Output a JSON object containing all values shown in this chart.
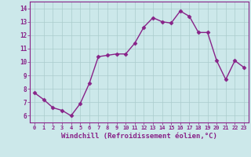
{
  "x": [
    0,
    1,
    2,
    3,
    4,
    5,
    6,
    7,
    8,
    9,
    10,
    11,
    12,
    13,
    14,
    15,
    16,
    17,
    18,
    19,
    20,
    21,
    22,
    23
  ],
  "y": [
    7.7,
    7.2,
    6.6,
    6.4,
    6.0,
    6.9,
    8.4,
    10.4,
    10.5,
    10.6,
    10.6,
    11.4,
    12.6,
    13.3,
    13.0,
    12.9,
    13.8,
    13.4,
    12.2,
    12.2,
    10.1,
    8.7,
    10.1,
    9.6
  ],
  "line_color": "#882288",
  "marker": "D",
  "marker_size": 2.5,
  "linewidth": 1.0,
  "xlabel": "Windchill (Refroidissement éolien,°C)",
  "xlabel_fontsize": 6.5,
  "xtick_labels": [
    "0",
    "1",
    "2",
    "3",
    "4",
    "5",
    "6",
    "7",
    "8",
    "9",
    "10",
    "11",
    "12",
    "13",
    "14",
    "15",
    "16",
    "17",
    "18",
    "19",
    "20",
    "21",
    "22",
    "23"
  ],
  "ytick_labels": [
    "6",
    "7",
    "8",
    "9",
    "10",
    "11",
    "12",
    "13",
    "14"
  ],
  "yticks": [
    6,
    7,
    8,
    9,
    10,
    11,
    12,
    13,
    14
  ],
  "ylim": [
    5.5,
    14.5
  ],
  "xlim": [
    -0.5,
    23.5
  ],
  "bg_color": "#cce8ea",
  "grid_color": "#aacccc",
  "tick_color": "#882288",
  "spine_color": "#882288"
}
